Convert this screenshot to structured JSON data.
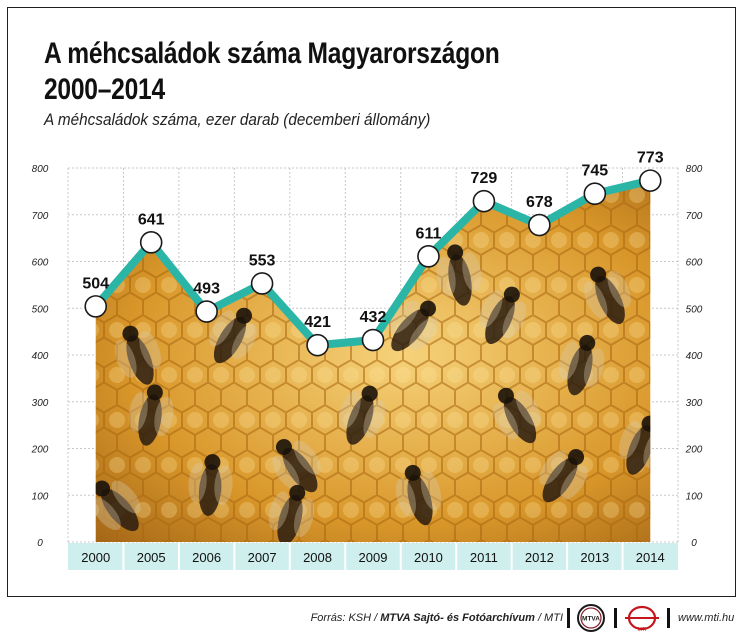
{
  "title_line1": "A méhcsaládok száma Magyarországon",
  "title_line2": "2000–2014",
  "subtitle": "A méhcsaládok száma, ezer darab (decemberi állomány)",
  "colors": {
    "line": "#2bb5a7",
    "axis_band": "#cfeeee",
    "grid": "#c8c8c8",
    "honey": "#d99a2e"
  },
  "chart_data": {
    "type": "line",
    "categories": [
      "2000",
      "2005",
      "2006",
      "2007",
      "2008",
      "2009",
      "2010",
      "2011",
      "2012",
      "2013",
      "2014"
    ],
    "values": [
      504,
      641,
      493,
      553,
      421,
      432,
      611,
      729,
      678,
      745,
      773
    ],
    "title": "A méhcsaládok száma Magyarországon 2000–2014",
    "ylim": [
      0,
      800
    ],
    "yticks": [
      0,
      100,
      200,
      300,
      400,
      500,
      600,
      700,
      800
    ],
    "grid": true,
    "background": "bee-photo"
  },
  "footer": {
    "source_prefix": "Forrás: KSH / ",
    "source_bold": "MTVA Sajtó- és Fotóarchívum",
    "source_suffix": " / MTI",
    "mtva_logo": "MTVA",
    "mti_logo": "MTI",
    "website": "www.mti.hu"
  }
}
